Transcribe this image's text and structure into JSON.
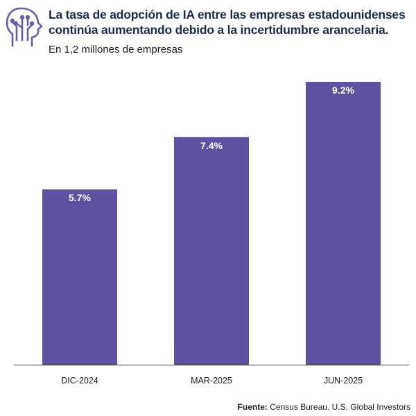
{
  "header": {
    "title": "La tasa de adopción de IA entre las empresas estadounidenses continúa aumentando debido a la incertidumbre arancelaria.",
    "subtitle": "En 1,2 millones de empresas",
    "logo_icon": "ai-head-circuit-icon",
    "logo_color": "#6a5aa8"
  },
  "footer": {
    "source_label": "Fuente:",
    "source_text": " Census Bureau, U.S. Global Investors"
  },
  "colors": {
    "bar": "#5f51a0",
    "title": "#1a2c48",
    "axis": "#333333"
  },
  "chart_data": {
    "type": "bar",
    "categories": [
      "DIC-2024",
      "MAR-2025",
      "JUN-2025"
    ],
    "values": [
      5.7,
      7.4,
      9.2
    ],
    "data_labels": [
      "5.7%",
      "7.4%",
      "9.2%"
    ],
    "ylim": [
      0,
      9.2
    ],
    "grid": false,
    "legend": "none"
  }
}
